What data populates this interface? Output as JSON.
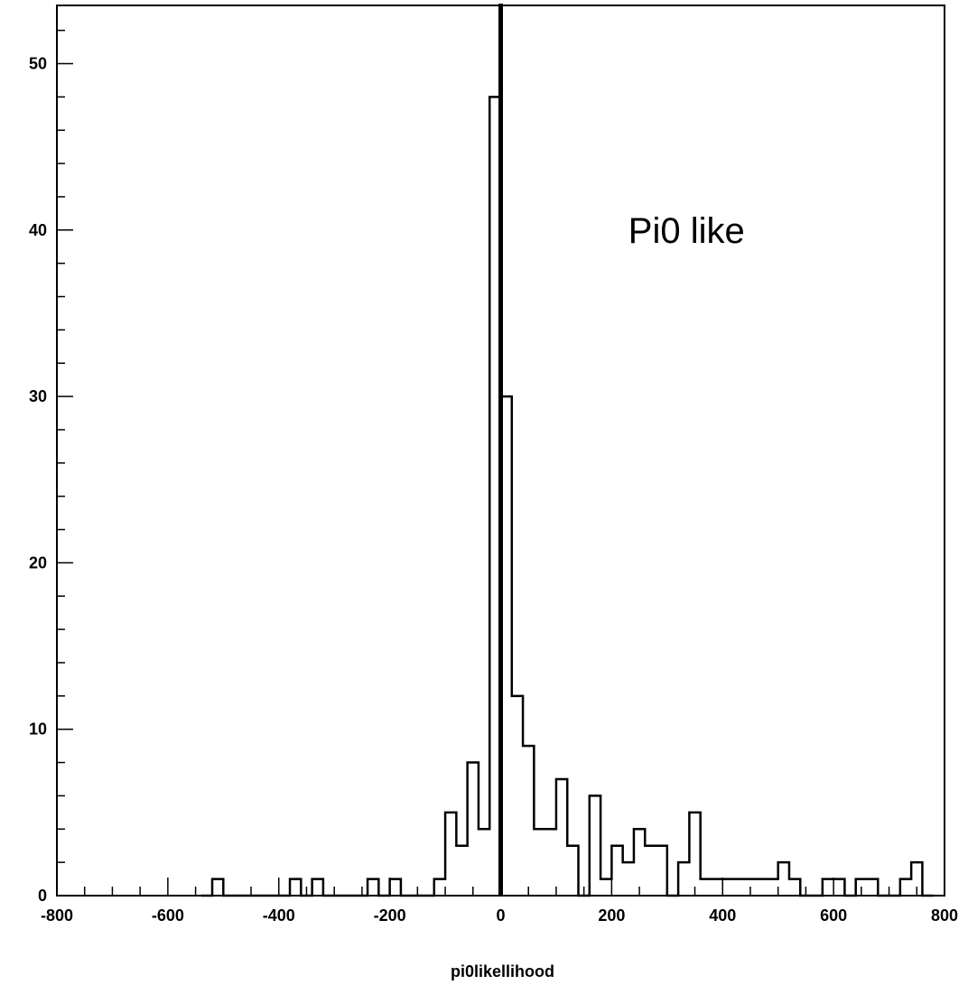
{
  "chart_data": {
    "type": "histogram",
    "title": "",
    "xlabel": "pi0likellihood",
    "ylabel": "",
    "xlim": [
      -800,
      800
    ],
    "ylim": [
      0,
      53.5
    ],
    "x_ticks": [
      -800,
      -600,
      -400,
      -200,
      0,
      200,
      400,
      600,
      800
    ],
    "y_ticks": [
      0,
      10,
      20,
      30,
      40,
      50
    ],
    "bin_width": 20,
    "bins": [
      {
        "x0": -520,
        "count": 1
      },
      {
        "x0": -380,
        "count": 1
      },
      {
        "x0": -340,
        "count": 1
      },
      {
        "x0": -240,
        "count": 1
      },
      {
        "x0": -200,
        "count": 1
      },
      {
        "x0": -120,
        "count": 1
      },
      {
        "x0": -100,
        "count": 5
      },
      {
        "x0": -80,
        "count": 3
      },
      {
        "x0": -60,
        "count": 8
      },
      {
        "x0": -40,
        "count": 4
      },
      {
        "x0": -20,
        "count": 48
      },
      {
        "x0": 0,
        "count": 30
      },
      {
        "x0": 20,
        "count": 12
      },
      {
        "x0": 40,
        "count": 9
      },
      {
        "x0": 60,
        "count": 4
      },
      {
        "x0": 80,
        "count": 4
      },
      {
        "x0": 100,
        "count": 7
      },
      {
        "x0": 120,
        "count": 3
      },
      {
        "x0": 160,
        "count": 6
      },
      {
        "x0": 180,
        "count": 1
      },
      {
        "x0": 200,
        "count": 3
      },
      {
        "x0": 220,
        "count": 2
      },
      {
        "x0": 240,
        "count": 4
      },
      {
        "x0": 260,
        "count": 3
      },
      {
        "x0": 280,
        "count": 3
      },
      {
        "x0": 320,
        "count": 2
      },
      {
        "x0": 340,
        "count": 5
      },
      {
        "x0": 360,
        "count": 1
      },
      {
        "x0": 380,
        "count": 1
      },
      {
        "x0": 400,
        "count": 1
      },
      {
        "x0": 420,
        "count": 1
      },
      {
        "x0": 440,
        "count": 1
      },
      {
        "x0": 460,
        "count": 1
      },
      {
        "x0": 480,
        "count": 1
      },
      {
        "x0": 500,
        "count": 2
      },
      {
        "x0": 520,
        "count": 1
      },
      {
        "x0": 580,
        "count": 1
      },
      {
        "x0": 600,
        "count": 1
      },
      {
        "x0": 640,
        "count": 1
      },
      {
        "x0": 660,
        "count": 1
      },
      {
        "x0": 720,
        "count": 1
      },
      {
        "x0": 740,
        "count": 2
      }
    ],
    "cut_line_x": 0,
    "annotation": {
      "text": "Pi0 like",
      "x": 230,
      "y": 40
    }
  }
}
